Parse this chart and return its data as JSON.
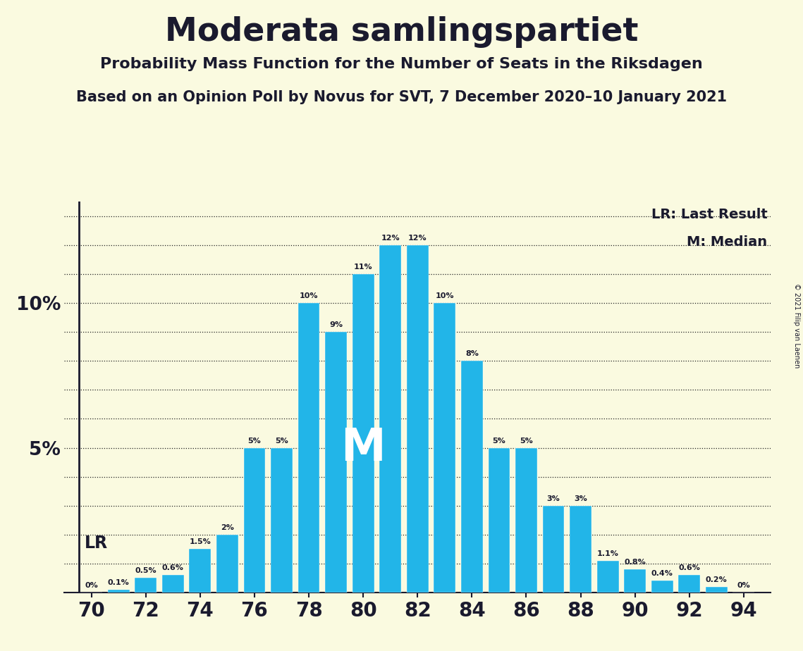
{
  "title": "Moderata samlingspartiet",
  "subtitle1": "Probability Mass Function for the Number of Seats in the Riksdagen",
  "subtitle2": "Based on an Opinion Poll by Novus for SVT, 7 December 2020–10 January 2021",
  "copyright": "© 2021 Filip van Laenen",
  "seats": [
    70,
    71,
    72,
    73,
    74,
    75,
    76,
    77,
    78,
    79,
    80,
    81,
    82,
    83,
    84,
    85,
    86,
    87,
    88,
    89,
    90,
    91,
    92,
    93,
    94
  ],
  "values": [
    0.0,
    0.1,
    0.5,
    0.6,
    1.5,
    2.0,
    5.0,
    5.0,
    10.0,
    9.0,
    11.0,
    12.0,
    12.0,
    10.0,
    8.0,
    5.0,
    5.0,
    3.0,
    3.0,
    1.1,
    0.8,
    0.4,
    0.6,
    0.2,
    0.0
  ],
  "bar_color": "#22b5e8",
  "background_color": "#fafae0",
  "text_color": "#1a1a2e",
  "lr_seat": 70,
  "median_seat": 81,
  "xlim": [
    69.0,
    95.0
  ],
  "ylim": [
    0,
    13.5
  ],
  "xticks": [
    70,
    72,
    74,
    76,
    78,
    80,
    82,
    84,
    86,
    88,
    90,
    92,
    94
  ],
  "grid_color": "#222222",
  "median_label_seat": 80,
  "bar_width": 0.8
}
